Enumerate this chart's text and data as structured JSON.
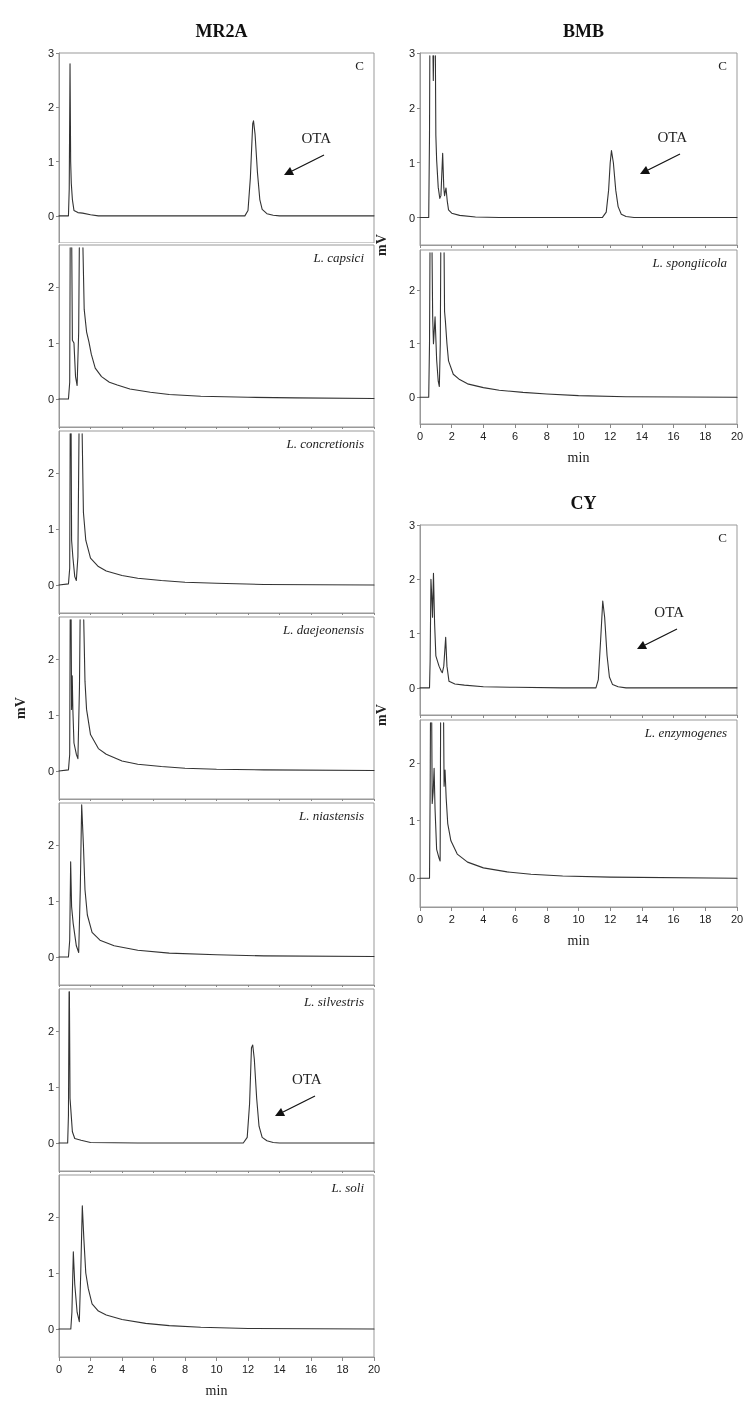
{
  "chart_data": [
    {
      "type": "line",
      "title": "MR2A",
      "annotations": [
        "C",
        "OTA"
      ],
      "xlim": [
        0,
        20
      ],
      "xticks": [
        0,
        2,
        4,
        6,
        8,
        10,
        12,
        14,
        16,
        18,
        20
      ],
      "ylim": [
        -0.5,
        3
      ],
      "yticks": [
        0,
        1,
        2,
        3
      ],
      "tick_labels": "y",
      "x": [
        0,
        0.6,
        0.65,
        0.7,
        0.74,
        0.78,
        0.85,
        0.95,
        1.2,
        1.5,
        2,
        2.5,
        5,
        8,
        11.8,
        12.0,
        12.15,
        12.3,
        12.35,
        12.45,
        12.6,
        12.75,
        12.9,
        13.2,
        13.6,
        14,
        17,
        20
      ],
      "series": [
        {
          "color": "#333333",
          "values": [
            0,
            0,
            0.5,
            2.8,
            1.0,
            0.6,
            0.3,
            0.1,
            0.06,
            0.05,
            0.02,
            0,
            0,
            0,
            0,
            0.1,
            0.7,
            1.7,
            1.75,
            1.5,
            0.8,
            0.3,
            0.12,
            0.04,
            0.01,
            0,
            0,
            0
          ]
        }
      ]
    },
    {
      "type": "line",
      "annotations": [
        "L. capsici"
      ],
      "xlim": [
        0,
        20
      ],
      "xticks": [
        0,
        2,
        4,
        6,
        8,
        10,
        12,
        14,
        16,
        18,
        20
      ],
      "ylim": [
        -0.5,
        2.75
      ],
      "yticks": [
        0,
        1,
        2
      ],
      "tick_labels": "y",
      "x": [
        0,
        0.6,
        0.68,
        0.71,
        0.72,
        0.8,
        0.81,
        0.85,
        0.95,
        1.05,
        1.15,
        1.25,
        1.29,
        1.3,
        1.5,
        1.52,
        1.6,
        1.75,
        1.9,
        2.05,
        2.3,
        2.7,
        3.2,
        3.7,
        4.5,
        5.8,
        7,
        9,
        12,
        15,
        20
      ],
      "series": [
        {
          "color": "#333333",
          "values": [
            0,
            0,
            0.3,
            2.7,
            null,
            null,
            2.7,
            1.05,
            1.0,
            0.4,
            0.24,
            1.2,
            2.7,
            null,
            null,
            2.7,
            1.6,
            1.2,
            1.02,
            0.8,
            0.55,
            0.4,
            0.3,
            0.25,
            0.18,
            0.12,
            0.08,
            0.05,
            0.03,
            0.02,
            0.01
          ]
        }
      ]
    },
    {
      "type": "line",
      "annotations": [
        "L. concretionis"
      ],
      "xlim": [
        0,
        20
      ],
      "xticks": [
        0,
        2,
        4,
        6,
        8,
        10,
        12,
        14,
        16,
        18,
        20
      ],
      "ylim": [
        -0.5,
        2.75
      ],
      "yticks": [
        0,
        1,
        2
      ],
      "tick_labels": "y",
      "x": [
        0,
        0.6,
        0.68,
        0.71,
        0.72,
        0.76,
        0.77,
        0.8,
        0.88,
        1.0,
        1.1,
        1.2,
        1.27,
        1.28,
        1.45,
        1.47,
        1.55,
        1.7,
        2.0,
        2.5,
        3,
        4,
        5,
        6.5,
        8,
        10,
        13,
        20
      ],
      "series": [
        {
          "color": "#333333",
          "values": [
            0,
            0.02,
            0.3,
            2.7,
            null,
            null,
            2.7,
            0.8,
            0.5,
            0.15,
            0.08,
            0.5,
            2.7,
            null,
            null,
            2.7,
            1.3,
            0.8,
            0.48,
            0.33,
            0.25,
            0.17,
            0.12,
            0.08,
            0.05,
            0.03,
            0.01,
            0
          ]
        }
      ]
    },
    {
      "type": "line",
      "ylabel": "mV",
      "annotations": [
        "L. daejeonensis"
      ],
      "xlim": [
        0,
        20
      ],
      "xticks": [
        0,
        2,
        4,
        6,
        8,
        10,
        12,
        14,
        16,
        18,
        20
      ],
      "ylim": [
        -0.5,
        2.75
      ],
      "yticks": [
        0,
        1,
        2
      ],
      "tick_labels": "y",
      "x": [
        0,
        0.6,
        0.68,
        0.71,
        0.72,
        0.76,
        0.77,
        0.8,
        0.84,
        0.88,
        0.95,
        1.1,
        1.2,
        1.3,
        1.34,
        1.35,
        1.55,
        1.57,
        1.65,
        1.75,
        2.0,
        2.5,
        3,
        4,
        5,
        6.5,
        8,
        10,
        13,
        20
      ],
      "series": [
        {
          "color": "#333333",
          "values": [
            0,
            0.02,
            0.3,
            2.7,
            null,
            null,
            2.7,
            1.1,
            1.7,
            1.1,
            0.5,
            0.3,
            0.22,
            1.5,
            2.7,
            null,
            null,
            2.7,
            1.6,
            1.1,
            0.65,
            0.4,
            0.3,
            0.18,
            0.12,
            0.08,
            0.05,
            0.03,
            0.02,
            0.01
          ]
        }
      ]
    },
    {
      "type": "line",
      "annotations": [
        "L. niastensis"
      ],
      "xlim": [
        0,
        20
      ],
      "xticks": [
        0,
        2,
        4,
        6,
        8,
        10,
        12,
        14,
        16,
        18,
        20
      ],
      "ylim": [
        -0.5,
        2.75
      ],
      "yticks": [
        0,
        1,
        2
      ],
      "tick_labels": "y",
      "x": [
        0,
        0.6,
        0.68,
        0.74,
        0.8,
        0.9,
        1.1,
        1.25,
        1.35,
        1.44,
        1.55,
        1.65,
        1.8,
        2.1,
        2.6,
        3.5,
        5,
        7,
        10,
        13,
        20
      ],
      "series": [
        {
          "color": "#333333",
          "values": [
            0,
            0,
            0.3,
            1.7,
            0.9,
            0.6,
            0.2,
            0.08,
            1.2,
            2.72,
            2.0,
            1.2,
            0.75,
            0.44,
            0.3,
            0.2,
            0.12,
            0.07,
            0.04,
            0.02,
            0.01
          ]
        }
      ]
    },
    {
      "type": "line",
      "annotations": [
        "L. silvestris",
        "OTA"
      ],
      "xlim": [
        0,
        20
      ],
      "xticks": [
        0,
        2,
        4,
        6,
        8,
        10,
        12,
        14,
        16,
        18,
        20
      ],
      "ylim": [
        -0.5,
        2.75
      ],
      "yticks": [
        0,
        1,
        2
      ],
      "tick_labels": "y",
      "x": [
        0,
        0.55,
        0.6,
        0.64,
        0.65,
        0.66,
        0.7,
        0.75,
        0.85,
        1.0,
        1.4,
        2,
        5,
        8,
        11.7,
        11.95,
        12.1,
        12.22,
        12.3,
        12.4,
        12.55,
        12.7,
        12.9,
        13.2,
        13.6,
        14,
        17,
        20
      ],
      "series": [
        {
          "color": "#333333",
          "values": [
            0,
            0,
            0.5,
            2.7,
            null,
            2.7,
            0.8,
            0.6,
            0.2,
            0.08,
            0.05,
            0.01,
            0,
            0,
            0,
            0.1,
            0.7,
            1.7,
            1.75,
            1.5,
            0.8,
            0.3,
            0.1,
            0.04,
            0.01,
            0,
            0,
            0
          ]
        }
      ]
    },
    {
      "type": "line",
      "xlabel": "min",
      "annotations": [
        "L. soli"
      ],
      "xlim": [
        0,
        20
      ],
      "xticks": [
        0,
        2,
        4,
        6,
        8,
        10,
        12,
        14,
        16,
        18,
        20
      ],
      "ylim": [
        -0.5,
        2.75
      ],
      "yticks": [
        0,
        1,
        2
      ],
      "x": [
        0,
        0.75,
        0.82,
        0.91,
        1.0,
        1.15,
        1.29,
        1.38,
        1.48,
        1.58,
        1.7,
        1.86,
        2.1,
        2.5,
        3,
        4,
        5.5,
        7,
        9,
        12,
        20
      ],
      "series": [
        {
          "color": "#333333",
          "values": [
            0,
            0,
            0.3,
            1.38,
            0.8,
            0.3,
            0.13,
            1.0,
            2.2,
            1.6,
            1.0,
            0.72,
            0.45,
            0.32,
            0.25,
            0.17,
            0.1,
            0.06,
            0.03,
            0.01,
            0
          ]
        }
      ]
    },
    {
      "type": "line",
      "title": "BMB",
      "ylabel": "mV",
      "annotations": [
        "C",
        "OTA"
      ],
      "xlim": [
        0,
        20
      ],
      "xticks": [
        0,
        2,
        4,
        6,
        8,
        10,
        12,
        14,
        16,
        18,
        20
      ],
      "ylim": [
        -0.5,
        3
      ],
      "yticks": [
        0,
        1,
        2,
        3
      ],
      "tick_labels": "y",
      "x": [
        0,
        0.55,
        0.6,
        0.62,
        0.63,
        0.8,
        0.82,
        0.84,
        0.86,
        0.9,
        0.95,
        0.97,
        1.0,
        1.05,
        1.15,
        1.25,
        1.32,
        1.43,
        1.5,
        1.55,
        1.64,
        1.72,
        1.8,
        2.0,
        2.5,
        3.5,
        5,
        8,
        11.5,
        11.75,
        11.9,
        12.0,
        12.08,
        12.2,
        12.35,
        12.5,
        12.7,
        13,
        13.5,
        17,
        20
      ],
      "series": [
        {
          "color": "#333333",
          "values": [
            0,
            0,
            1.5,
            2.95,
            null,
            null,
            2.95,
            2.5,
            2.95,
            null,
            null,
            2.95,
            1.5,
            1.05,
            0.55,
            0.35,
            0.4,
            1.17,
            0.55,
            0.4,
            0.54,
            0.3,
            0.14,
            0.08,
            0.04,
            0.01,
            0,
            0,
            0,
            0.1,
            0.5,
            1.0,
            1.22,
            1.0,
            0.5,
            0.2,
            0.06,
            0.02,
            0,
            0,
            0
          ]
        }
      ]
    },
    {
      "type": "line",
      "xlabel": "min",
      "annotations": [
        "L. spongiicola"
      ],
      "xlim": [
        0,
        20
      ],
      "xticks": [
        0,
        2,
        4,
        6,
        8,
        10,
        12,
        14,
        16,
        18,
        20
      ],
      "ylim": [
        -0.5,
        2.75
      ],
      "yticks": [
        0,
        1,
        2
      ],
      "x": [
        0,
        0.55,
        0.6,
        0.63,
        0.64,
        0.74,
        0.76,
        0.8,
        0.85,
        0.95,
        1.05,
        1.15,
        1.22,
        1.28,
        1.31,
        1.32,
        1.5,
        1.52,
        1.55,
        1.6,
        1.7,
        1.8,
        2.1,
        2.5,
        3,
        4,
        5,
        6.5,
        8,
        10,
        13,
        20
      ],
      "series": [
        {
          "color": "#333333",
          "values": [
            0,
            0,
            1.0,
            2.7,
            null,
            null,
            2.7,
            1.5,
            1.0,
            1.5,
            0.7,
            0.3,
            0.2,
            1.0,
            2.7,
            null,
            null,
            2.7,
            1.6,
            1.43,
            1.0,
            0.68,
            0.43,
            0.33,
            0.25,
            0.18,
            0.13,
            0.09,
            0.06,
            0.03,
            0.01,
            0
          ]
        }
      ]
    },
    {
      "type": "line",
      "title": "CY",
      "ylabel": "mV",
      "annotations": [
        "C",
        "OTA"
      ],
      "xlim": [
        0,
        20
      ],
      "xticks": [
        0,
        2,
        4,
        6,
        8,
        10,
        12,
        14,
        16,
        18,
        20
      ],
      "ylim": [
        -0.5,
        3
      ],
      "yticks": [
        0,
        1,
        2,
        3
      ],
      "tick_labels": "y",
      "x": [
        0,
        0.6,
        0.64,
        0.69,
        0.74,
        0.79,
        0.85,
        0.92,
        1.0,
        1.2,
        1.35,
        1.41,
        1.5,
        1.62,
        1.7,
        1.83,
        2.2,
        2.8,
        4,
        6,
        9,
        11.1,
        11.25,
        11.4,
        11.53,
        11.65,
        11.8,
        11.95,
        12.15,
        12.5,
        13,
        17,
        20
      ],
      "series": [
        {
          "color": "#333333",
          "values": [
            0,
            0,
            0.5,
            2.0,
            1.7,
            1.3,
            2.11,
            1.2,
            0.59,
            0.4,
            0.3,
            0.28,
            0.4,
            0.93,
            0.4,
            0.12,
            0.07,
            0.05,
            0.02,
            0.01,
            0,
            0,
            0.15,
            0.9,
            1.6,
            1.3,
            0.6,
            0.2,
            0.06,
            0.02,
            0,
            0,
            0
          ]
        }
      ]
    },
    {
      "type": "line",
      "xlabel": "min",
      "annotations": [
        "L. enzymogenes"
      ],
      "xlim": [
        0,
        20
      ],
      "xticks": [
        0,
        2,
        4,
        6,
        8,
        10,
        12,
        14,
        16,
        18,
        20
      ],
      "ylim": [
        -0.5,
        2.75
      ],
      "yticks": [
        0,
        1,
        2
      ],
      "x": [
        0,
        0.6,
        0.64,
        0.66,
        0.67,
        0.72,
        0.74,
        0.77,
        0.83,
        0.89,
        0.95,
        1.05,
        1.2,
        1.27,
        1.3,
        1.31,
        1.47,
        1.49,
        1.52,
        1.58,
        1.65,
        1.75,
        1.95,
        2.35,
        3,
        4,
        5.5,
        7,
        9,
        12,
        20
      ],
      "series": [
        {
          "color": "#333333",
          "values": [
            0,
            0,
            1.5,
            2.7,
            null,
            null,
            2.7,
            1.3,
            1.5,
            1.91,
            1.2,
            0.5,
            0.35,
            0.3,
            2.7,
            null,
            null,
            2.7,
            1.6,
            1.88,
            1.4,
            0.95,
            0.65,
            0.42,
            0.28,
            0.18,
            0.11,
            0.07,
            0.04,
            0.02,
            0
          ]
        }
      ]
    }
  ]
}
